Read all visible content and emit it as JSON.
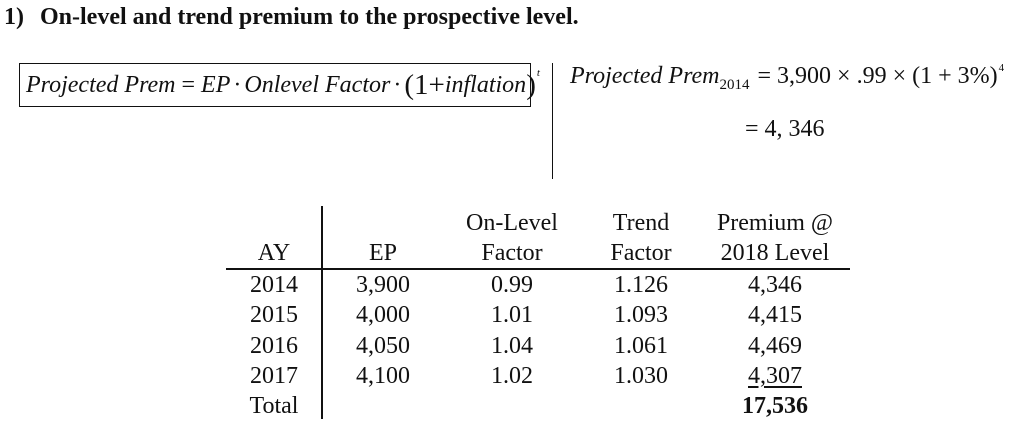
{
  "heading": {
    "number": "1)",
    "text": "On-level and trend premium to the prospective level."
  },
  "formula": {
    "lhs": "Projected Prem",
    "eq": "=",
    "ep": "EP",
    "dot": "·",
    "onlevel": "Onlevel Factor",
    "open": "(1+",
    "inflation": "inflation",
    "close": ")",
    "exp": "t"
  },
  "projection": {
    "label": "Projected Prem",
    "subscript": "2014",
    "expression": "= 3,900 × .99 × (1 + 3%)",
    "exponent": "4",
    "result": "= 4, 346"
  },
  "table": {
    "headers": {
      "ay": "AY",
      "ep": "EP",
      "onlevel_1": "On-Level",
      "onlevel_2": "Factor",
      "trend_1": "Trend",
      "trend_2": "Factor",
      "premium_1": "Premium @",
      "premium_2": "2018 Level"
    },
    "rows": [
      {
        "ay": "2014",
        "ep": "3,900",
        "onlevel": "0.99",
        "trend": "1.126",
        "premium": "4,346"
      },
      {
        "ay": "2015",
        "ep": "4,000",
        "onlevel": "1.01",
        "trend": "1.093",
        "premium": "4,415"
      },
      {
        "ay": "2016",
        "ep": "4,050",
        "onlevel": "1.04",
        "trend": "1.061",
        "premium": "4,469"
      },
      {
        "ay": "2017",
        "ep": "4,100",
        "onlevel": "1.02",
        "trend": "1.030",
        "premium": "4,307"
      }
    ],
    "total_label": "Total",
    "total_value": "17,536"
  }
}
